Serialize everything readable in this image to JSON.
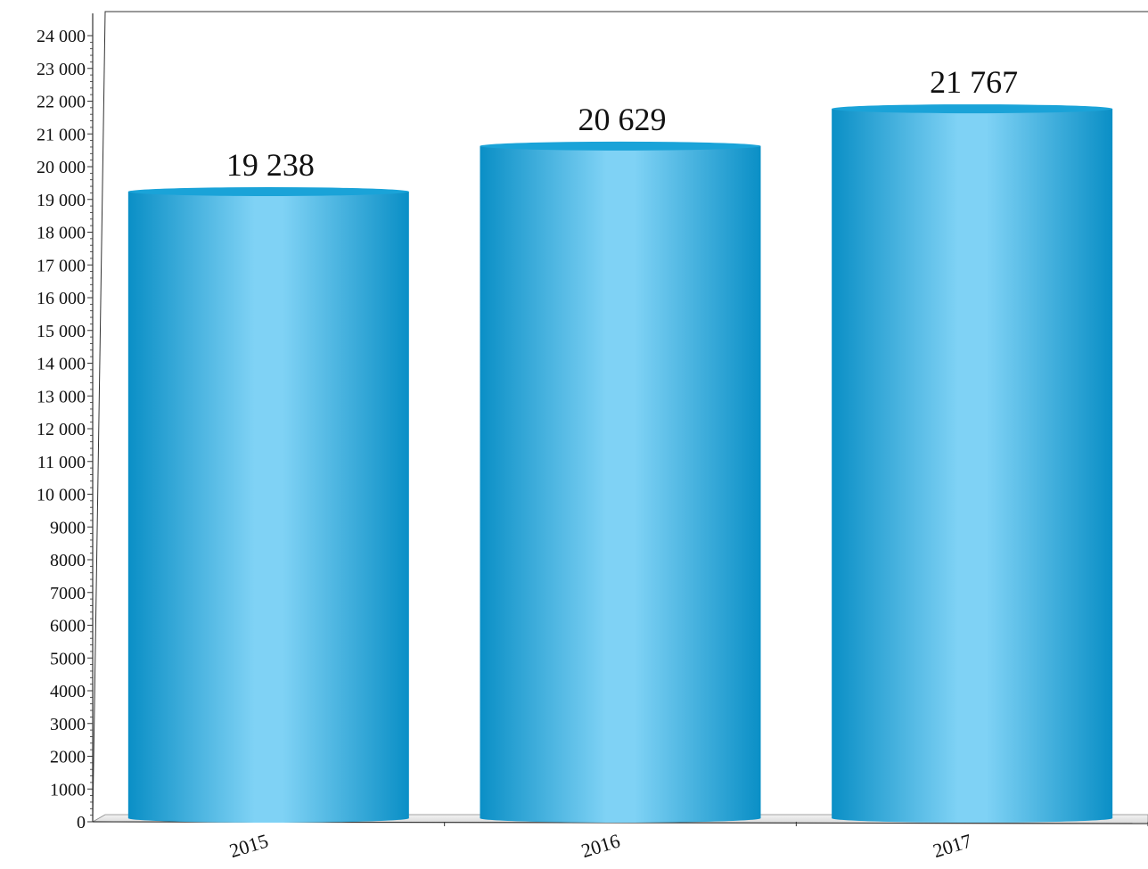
{
  "chart_data": {
    "type": "bar",
    "categories": [
      "2015",
      "2016",
      "2017"
    ],
    "values": [
      19238,
      20629,
      21767
    ],
    "value_labels": [
      "19 238",
      "20 629",
      "21 767"
    ],
    "ylim": [
      0,
      24000
    ],
    "yticks": [
      0,
      1000,
      2000,
      3000,
      4000,
      5000,
      6000,
      7000,
      8000,
      9000,
      10000,
      11000,
      12000,
      13000,
      14000,
      15000,
      16000,
      17000,
      18000,
      19000,
      20000,
      21000,
      22000,
      23000,
      24000
    ],
    "ytick_labels": [
      "0",
      "1000",
      "2000",
      "3000",
      "4000",
      "5000",
      "6000",
      "7000",
      "8000",
      "9000",
      "10 000",
      "11 000",
      "12 000",
      "13 000",
      "14 000",
      "15 000",
      "16 000",
      "17 000",
      "18 000",
      "19 000",
      "20 000",
      "21 000",
      "22 000",
      "23 000",
      "24 000"
    ],
    "title": "",
    "xlabel": "",
    "ylabel": "",
    "grid": false,
    "legend": "none",
    "bar_style": "3d-cylinder",
    "colors": {
      "bar_dark": "#0a8fc6",
      "bar_light": "#7fd2f5",
      "bar_top": "#1aa3d8",
      "axis": "#333333"
    }
  }
}
